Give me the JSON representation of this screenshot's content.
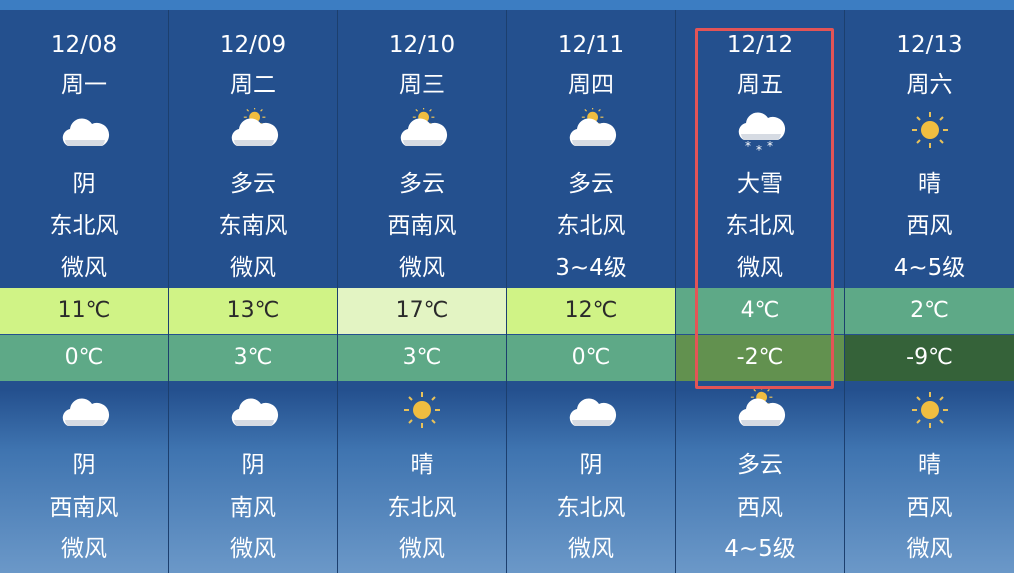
{
  "colors": {
    "highlight": "#e35456",
    "temp_very_warm": "#e3f4c3",
    "temp_warm": "#d0f386",
    "temp_cool": "#5ea987",
    "temp_cold": "#62914f",
    "temp_very_cold": "#356239"
  },
  "days": [
    {
      "date": "12/08",
      "weekday": "周一",
      "day": {
        "icon": "cloudy-icon",
        "weather": "阴",
        "wind_dir": "东北风",
        "wind_level": "微风"
      },
      "high": "11℃",
      "low": "0℃",
      "high_color": "#d0f386",
      "low_color": "#5ea987",
      "night": {
        "icon": "cloudy-icon",
        "weather": "阴",
        "wind_dir": "西南风",
        "wind_level": "微风"
      }
    },
    {
      "date": "12/09",
      "weekday": "周二",
      "day": {
        "icon": "partly-cloudy-icon",
        "weather": "多云",
        "wind_dir": "东南风",
        "wind_level": "微风"
      },
      "high": "13℃",
      "low": "3℃",
      "high_color": "#d0f386",
      "low_color": "#5ea987",
      "night": {
        "icon": "cloudy-icon",
        "weather": "阴",
        "wind_dir": "南风",
        "wind_level": "微风"
      }
    },
    {
      "date": "12/10",
      "weekday": "周三",
      "day": {
        "icon": "partly-cloudy-icon",
        "weather": "多云",
        "wind_dir": "西南风",
        "wind_level": "微风"
      },
      "high": "17℃",
      "low": "3℃",
      "high_color": "#e3f4c3",
      "low_color": "#5ea987",
      "night": {
        "icon": "sunny-icon",
        "weather": "晴",
        "wind_dir": "东北风",
        "wind_level": "微风"
      }
    },
    {
      "date": "12/11",
      "weekday": "周四",
      "day": {
        "icon": "partly-cloudy-icon",
        "weather": "多云",
        "wind_dir": "东北风",
        "wind_level": "3~4级"
      },
      "high": "12℃",
      "low": "0℃",
      "high_color": "#d0f386",
      "low_color": "#5ea987",
      "night": {
        "icon": "cloudy-icon",
        "weather": "阴",
        "wind_dir": "东北风",
        "wind_level": "微风"
      }
    },
    {
      "date": "12/12",
      "weekday": "周五",
      "day": {
        "icon": "heavy-snow-icon",
        "weather": "大雪",
        "wind_dir": "东北风",
        "wind_level": "微风"
      },
      "high": "4℃",
      "low": "-2℃",
      "high_color": "#5ea987",
      "low_color": "#62914f",
      "night": {
        "icon": "partly-cloudy-icon",
        "weather": "多云",
        "wind_dir": "西风",
        "wind_level": "4~5级"
      },
      "selected": true
    },
    {
      "date": "12/13",
      "weekday": "周六",
      "day": {
        "icon": "sunny-icon",
        "weather": "晴",
        "wind_dir": "西风",
        "wind_level": "4~5级"
      },
      "high": "2℃",
      "low": "-9℃",
      "high_color": "#5ea987",
      "low_color": "#356239",
      "night": {
        "icon": "sunny-icon",
        "weather": "晴",
        "wind_dir": "西风",
        "wind_level": "微风"
      }
    }
  ]
}
